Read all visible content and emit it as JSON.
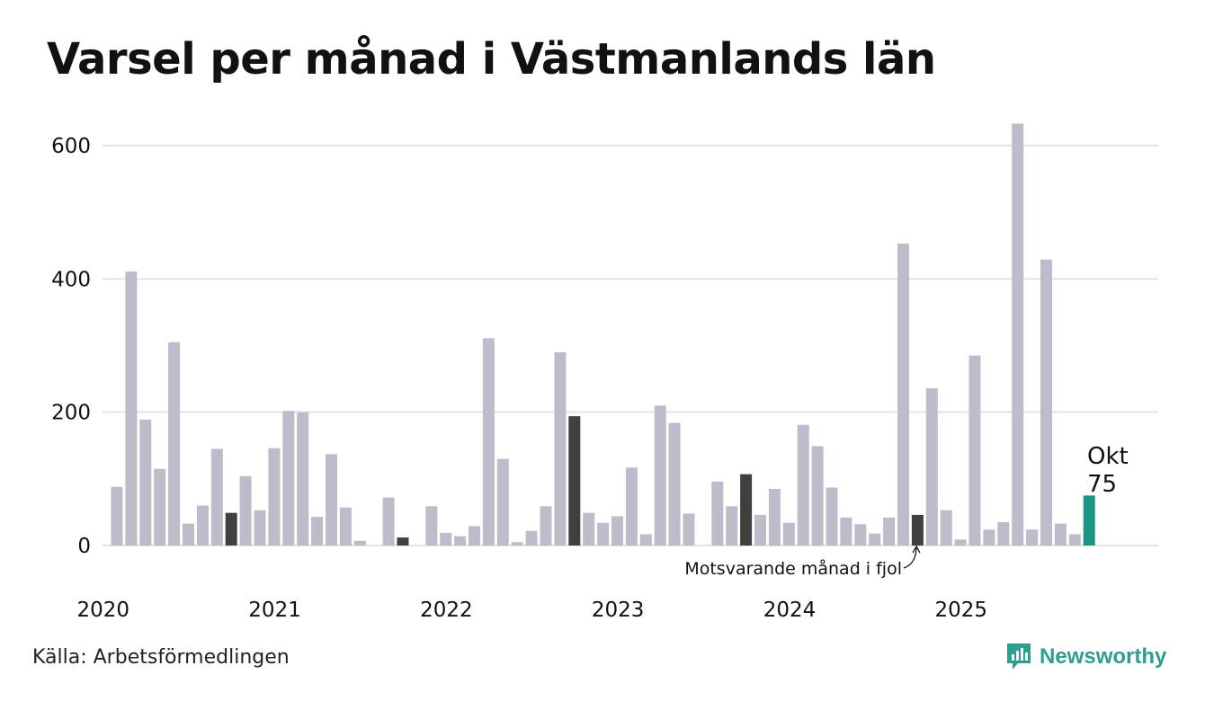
{
  "title": "Varsel per månad i Västmanlands län",
  "source": "Källa: Arbetsförmedlingen",
  "brand": {
    "name": "Newsworthy",
    "icon": "newsworthy-logo-icon"
  },
  "colors": {
    "default": "#bdbccb",
    "highlight": "#404040",
    "current": "#1a9585",
    "grid": "#e3e3e3",
    "brand": "#2e9e8f"
  },
  "chart_data": {
    "type": "bar",
    "title": "Varsel per månad i Västmanlands län",
    "xlabel": "",
    "ylabel": "",
    "ylim": [
      0,
      640
    ],
    "yticks": [
      0,
      200,
      400,
      600
    ],
    "year_labels": [
      "2020",
      "2021",
      "2022",
      "2023",
      "2024",
      "2025"
    ],
    "values": [
      88,
      411,
      189,
      115,
      305,
      33,
      60,
      145,
      49,
      104,
      53,
      146,
      202,
      200,
      43,
      137,
      57,
      7,
      0,
      72,
      12,
      0,
      59,
      19,
      14,
      29,
      311,
      130,
      5,
      22,
      59,
      290,
      194,
      49,
      34,
      44,
      117,
      17,
      210,
      184,
      48,
      0,
      96,
      59,
      107,
      46,
      85,
      34,
      181,
      149,
      87,
      42,
      32,
      18,
      42,
      453,
      46,
      236,
      53,
      9,
      285,
      24,
      35,
      633,
      24,
      429,
      33,
      17,
      75
    ],
    "highlight_indices": [
      8,
      20,
      32,
      44,
      56
    ],
    "current_index": 68,
    "current_label": {
      "month": "Okt",
      "value": "75"
    },
    "annotation": "Motsvarande månad i fjol"
  }
}
